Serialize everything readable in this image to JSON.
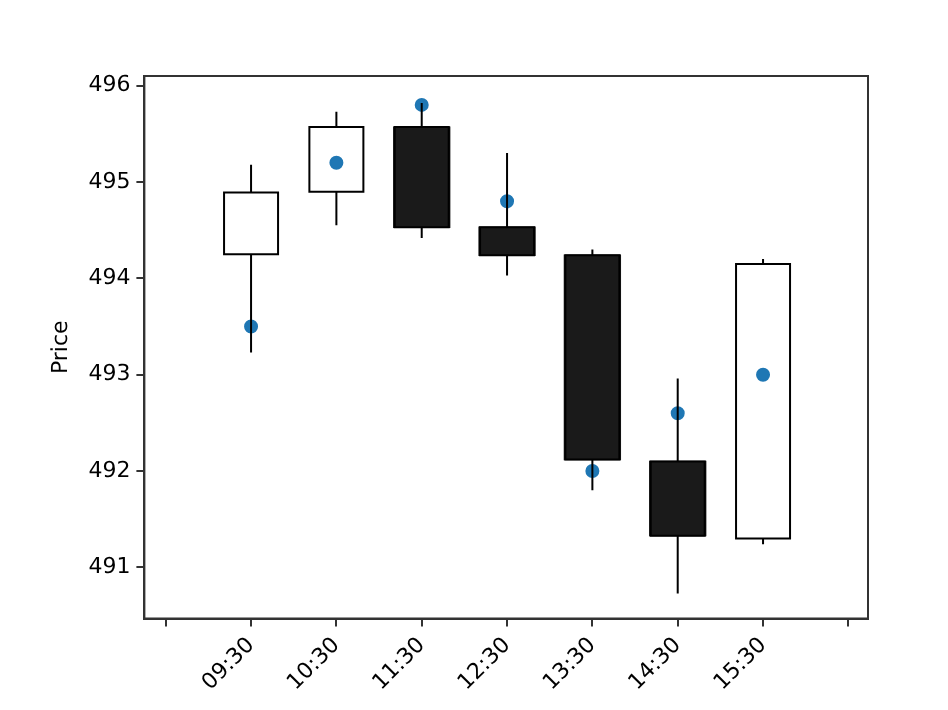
{
  "chart_data": {
    "type": "candlestick",
    "ylabel": "Price",
    "xlim": [
      8.25,
      16.73
    ],
    "xticks": [
      {
        "value": 8.5,
        "label": null
      },
      {
        "value": 9.5,
        "label": "09:30"
      },
      {
        "value": 10.5,
        "label": "10:30"
      },
      {
        "value": 11.5,
        "label": "11:30"
      },
      {
        "value": 12.5,
        "label": "12:30"
      },
      {
        "value": 13.5,
        "label": "13:30"
      },
      {
        "value": 14.5,
        "label": "14:30"
      },
      {
        "value": 15.5,
        "label": "15:30"
      },
      {
        "value": 16.5,
        "label": null
      }
    ],
    "ylim": [
      490.47,
      496.1
    ],
    "yticks": [
      491,
      492,
      493,
      494,
      495,
      496
    ],
    "grid": false,
    "legend": false,
    "series": [
      {
        "x": [
          9.5,
          10.5,
          11.5,
          12.5,
          13.5,
          14.5,
          15.5
        ],
        "ohlc": [
          [
            494.25,
            495.18,
            493.23,
            494.89
          ],
          [
            494.9,
            495.73,
            494.55,
            495.57
          ],
          [
            495.57,
            495.82,
            494.42,
            494.53
          ],
          [
            494.53,
            495.3,
            494.03,
            494.24
          ],
          [
            494.24,
            494.3,
            491.8,
            492.12
          ],
          [
            492.1,
            492.96,
            490.73,
            491.33
          ],
          [
            491.3,
            494.2,
            491.24,
            494.15
          ]
        ],
        "colors": [
          "#ffffff",
          "#ffffff",
          "#1a1a1a",
          "#1a1a1a",
          "#1a1a1a",
          "#1a1a1a",
          "#ffffff"
        ]
      },
      {
        "type": "scatter",
        "x": [
          9.5,
          10.5,
          11.5,
          12.5,
          13.5,
          14.5,
          15.5
        ],
        "values": [
          493.5,
          495.2,
          495.8,
          494.8,
          492.0,
          492.6,
          493.0
        ],
        "color": "#1f77b4",
        "marker": "circle"
      }
    ]
  }
}
